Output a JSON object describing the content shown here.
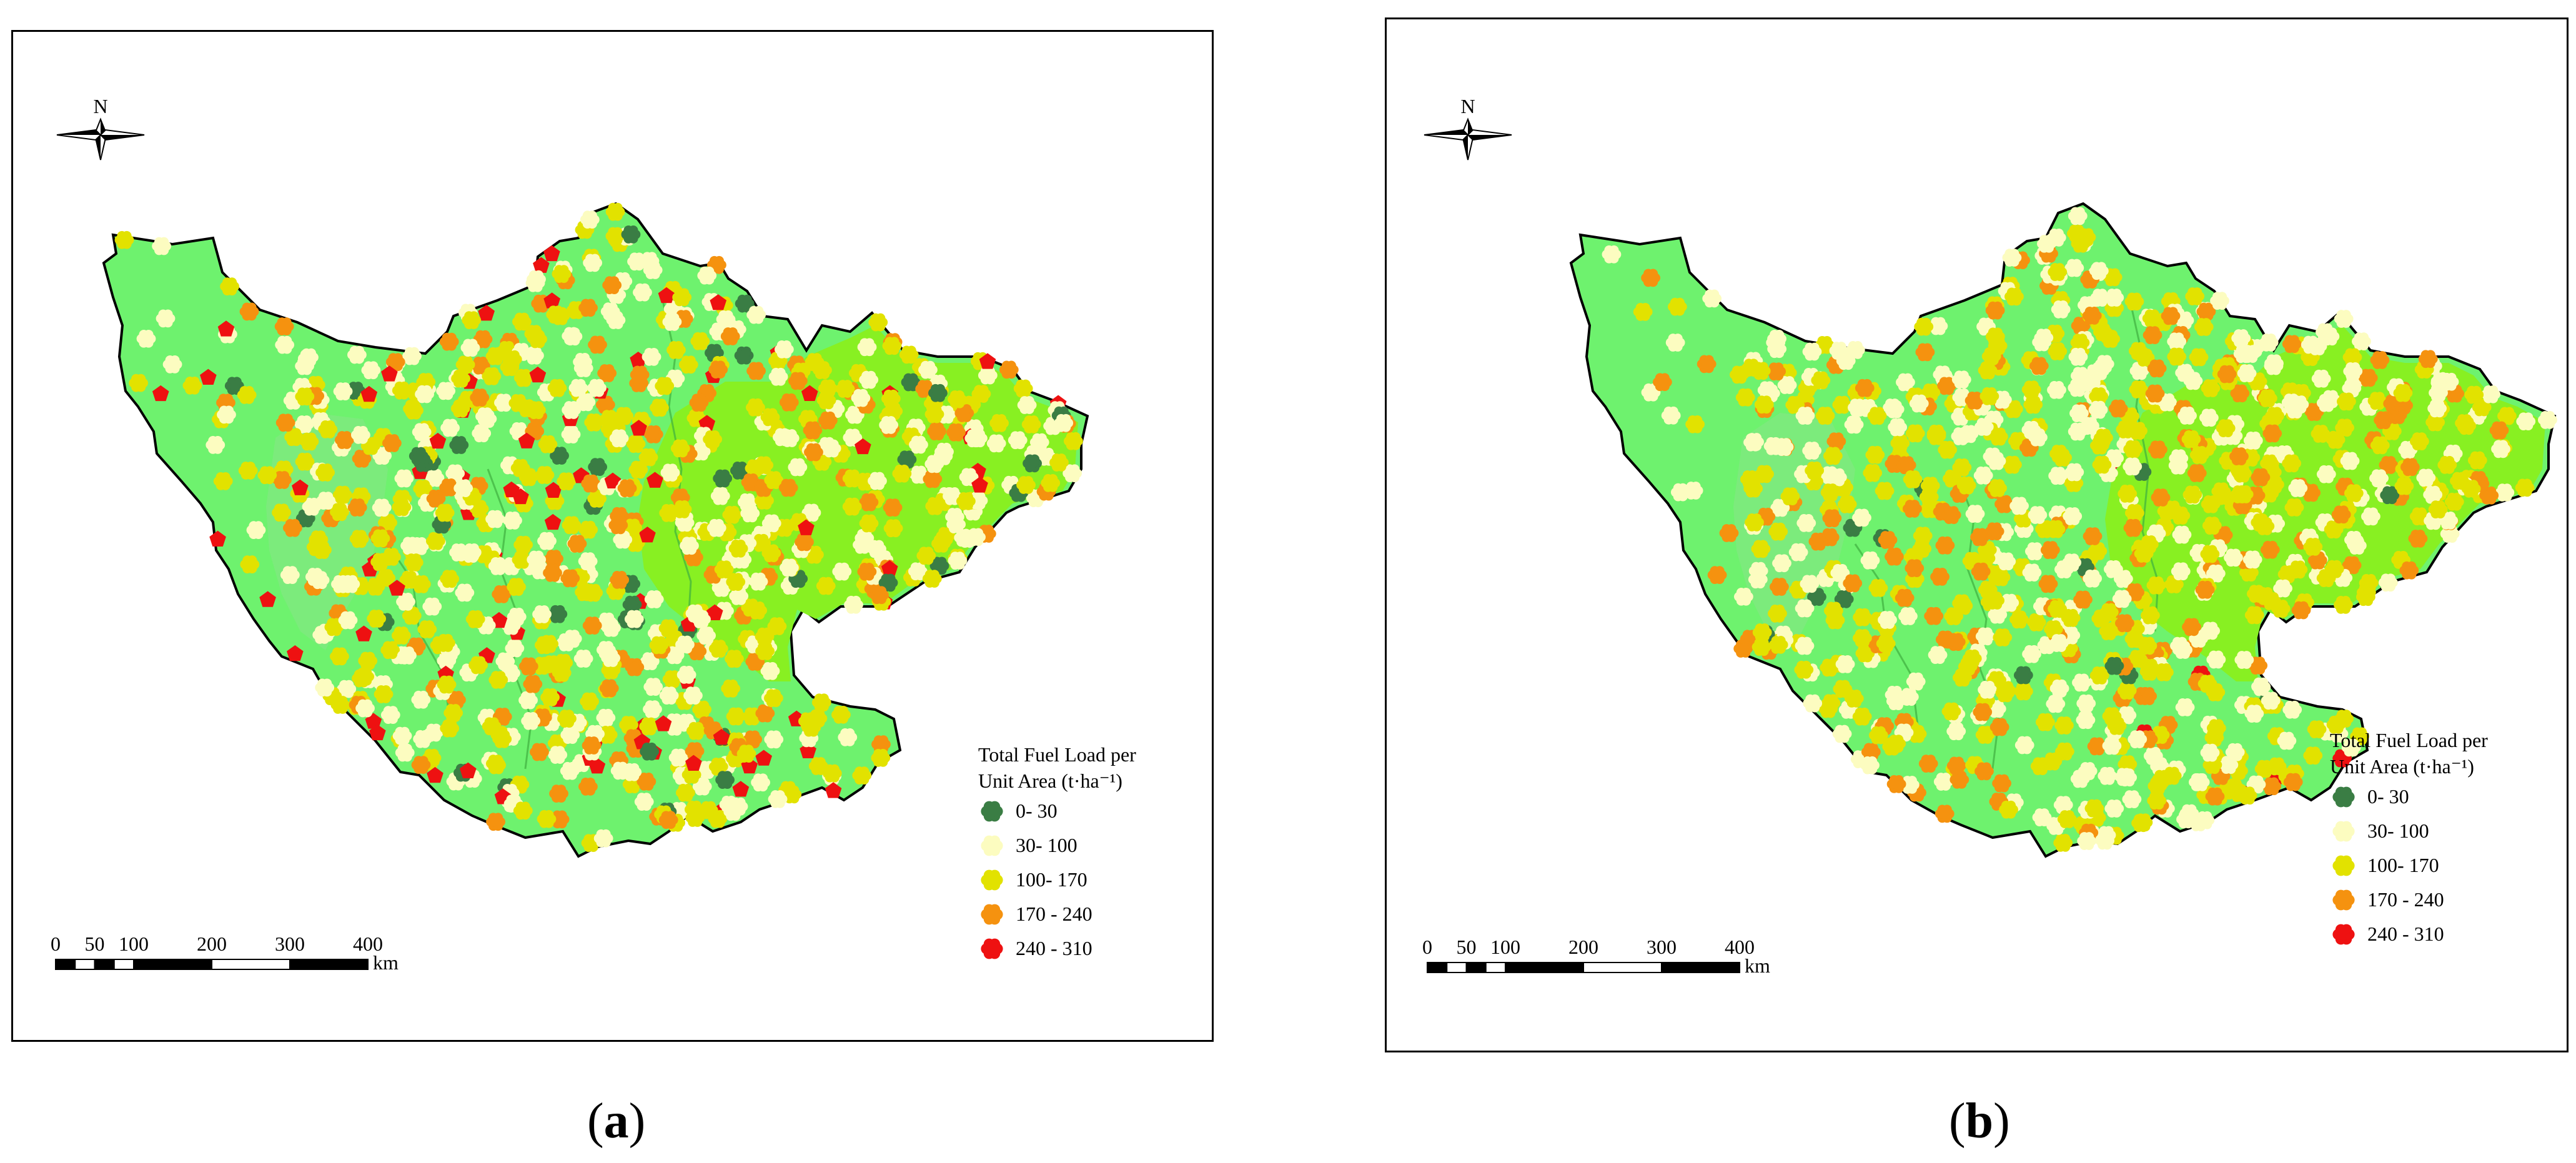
{
  "colors": {
    "region_main": "#6EF26E",
    "region_west": "#7CEB7C",
    "region_east": "#88F022",
    "classes": [
      "#3A7D44",
      "#FCFCC0",
      "#E2E200",
      "#F5920F",
      "#EE1111"
    ]
  },
  "north_label": "N",
  "legend": {
    "title_line1": "Total Fuel Load per",
    "title_line2": "Unit Area (t·ha⁻¹)",
    "classes": [
      {
        "label": "0- 30"
      },
      {
        "label": "30- 100"
      },
      {
        "label": "100- 170"
      },
      {
        "label": "170 - 240"
      },
      {
        "label": "240 - 310"
      }
    ]
  },
  "scale_bar": {
    "tick_labels": [
      "0",
      "50",
      "100",
      "200",
      "300",
      "400"
    ],
    "unit": "km"
  },
  "panels": [
    {
      "id": "a",
      "caption_open": "(",
      "caption_label": "a",
      "caption_close": ")",
      "class_weights": [
        0.04,
        0.34,
        0.38,
        0.14,
        0.1
      ]
    },
    {
      "id": "b",
      "caption_open": "(",
      "caption_label": "b",
      "caption_close": ")",
      "class_weights": [
        0.01,
        0.36,
        0.43,
        0.19,
        0.01
      ]
    }
  ]
}
